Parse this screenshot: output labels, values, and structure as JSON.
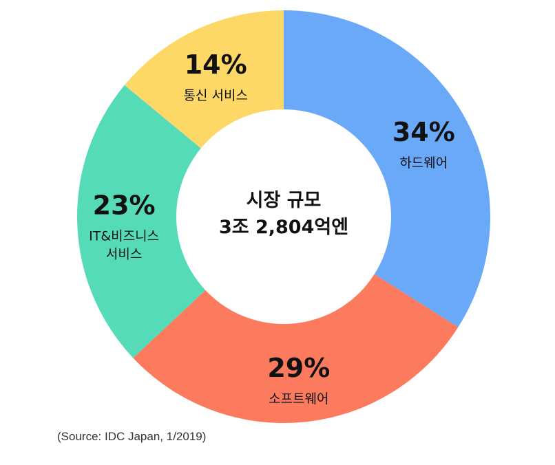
{
  "chart_data": {
    "type": "pie",
    "donut": true,
    "categories": [
      "하드웨어",
      "소프트웨어",
      "IT&비즈니스 서비스",
      "통신 서비스"
    ],
    "values": [
      34,
      29,
      23,
      14
    ],
    "value_labels": [
      "34%",
      "29%",
      "23%",
      "14%"
    ],
    "label_lines": [
      [
        "하드웨어"
      ],
      [
        "소프트웨어"
      ],
      [
        "IT&비즈니스",
        "서비스"
      ],
      [
        "통신 서비스"
      ]
    ],
    "colors": [
      "#6aa9f8",
      "#fc7a5e",
      "#55dbb8",
      "#fdd867"
    ],
    "start": "top",
    "direction": "clockwise",
    "center_text": [
      "시장 규모",
      "3조 2,804억엔"
    ]
  },
  "source": "(Source: IDC Japan, 1/2019)"
}
